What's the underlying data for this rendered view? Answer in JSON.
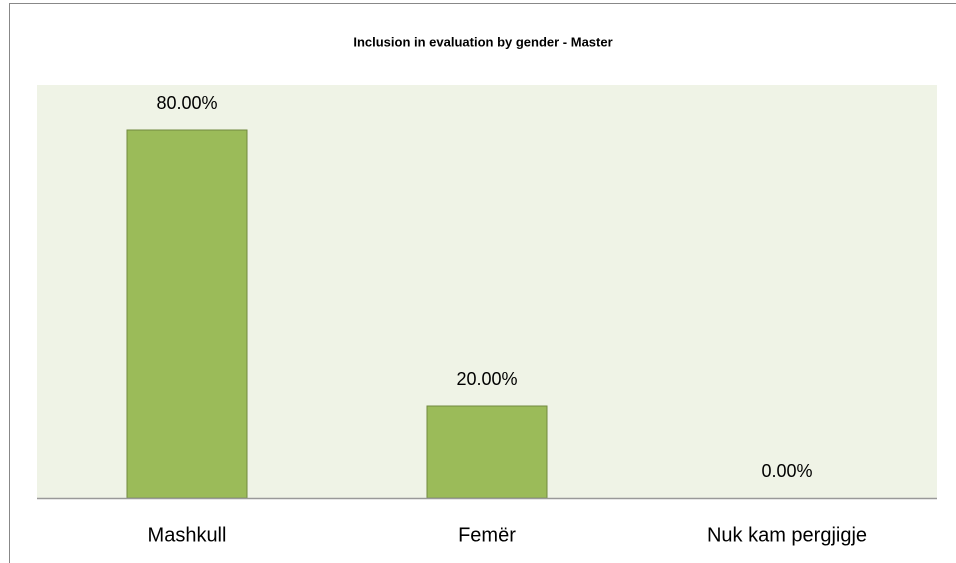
{
  "chart_data": {
    "type": "bar",
    "title": "Inclusion in evaluation by gender - Master",
    "categories": [
      "Mashkull",
      "Femër",
      "Nuk kam pergjigje"
    ],
    "values": [
      80,
      20,
      0
    ],
    "value_labels": [
      "80.00%",
      "20.00%",
      "0.00%"
    ],
    "color": "#9bbb59"
  }
}
